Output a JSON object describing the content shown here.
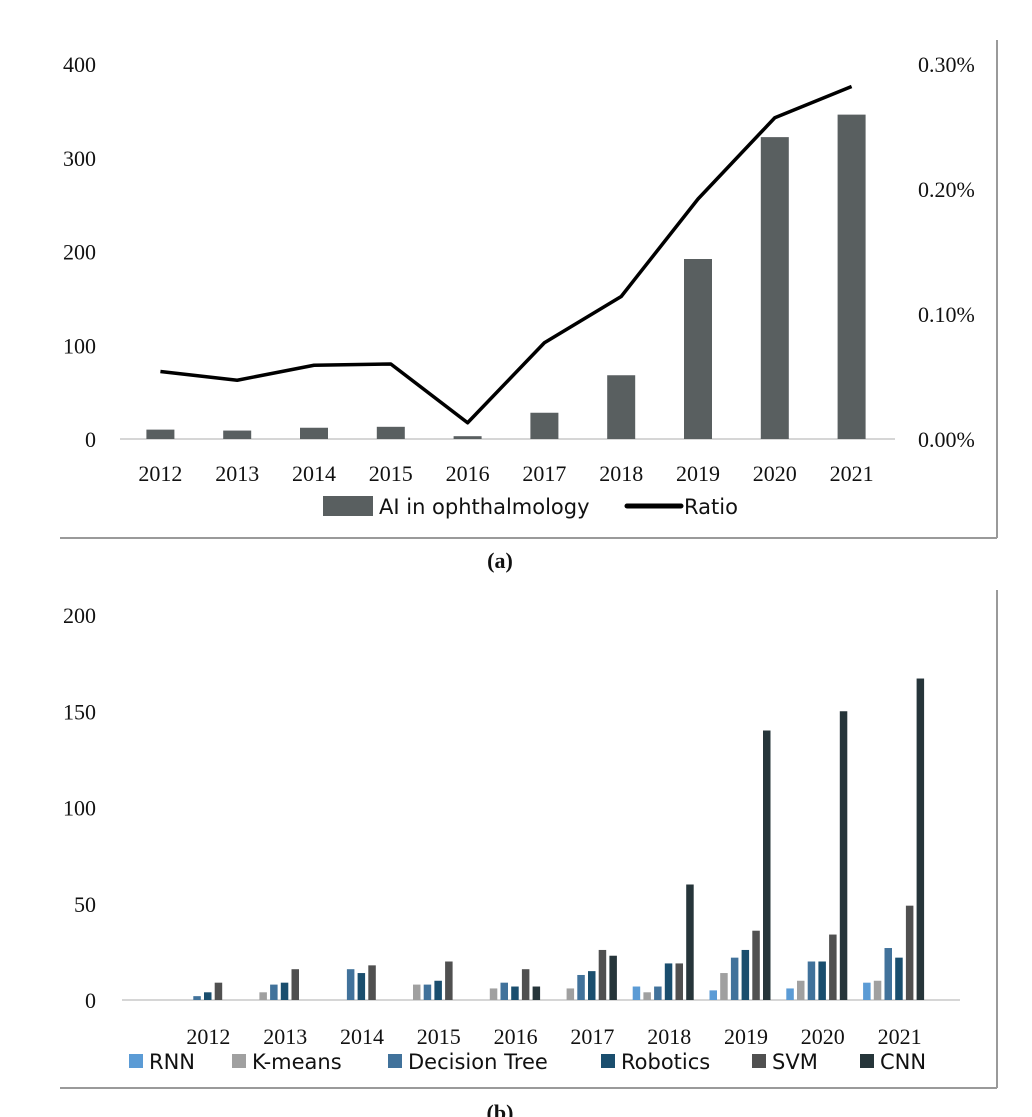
{
  "chart_data": [
    {
      "type": "bar",
      "caption": "(a)",
      "categories": [
        "2012",
        "2013",
        "2014",
        "2015",
        "2016",
        "2017",
        "2018",
        "2019",
        "2020",
        "2021"
      ],
      "series": [
        {
          "name": "AI in ophthalmology",
          "kind": "bar",
          "axis": "left",
          "color": "#595f60",
          "values": [
            10,
            9,
            12,
            13,
            3,
            28,
            68,
            192,
            322,
            346
          ]
        },
        {
          "name": "Ratio",
          "kind": "line",
          "axis": "right",
          "color": "#000000",
          "values": [
            0.00054,
            0.00047,
            0.00059,
            0.0006,
            0.00013,
            0.00077,
            0.00114,
            0.00192,
            0.00257,
            0.00282
          ]
        }
      ],
      "ylim": [
        0,
        400
      ],
      "yticks": [
        "0",
        "100",
        "200",
        "300",
        "400"
      ],
      "y2lim": [
        0,
        0.003
      ],
      "y2ticks": [
        "0.00%",
        "0.10%",
        "0.20%",
        "0.30%"
      ],
      "legend_position": "bottom"
    },
    {
      "type": "bar",
      "caption": "(b)",
      "categories": [
        "2012",
        "2013",
        "2014",
        "2015",
        "2016",
        "2017",
        "2018",
        "2019",
        "2020",
        "2021"
      ],
      "series": [
        {
          "name": "RNN",
          "color": "#5b9bd5",
          "values": [
            0,
            0,
            0,
            0,
            0,
            0,
            7,
            5,
            6,
            9
          ]
        },
        {
          "name": "K-means",
          "color": "#a0a0a0",
          "values": [
            0,
            4,
            0,
            8,
            6,
            6,
            4,
            14,
            10,
            10
          ]
        },
        {
          "name": "Decision Tree",
          "color": "#41729b",
          "values": [
            2,
            8,
            16,
            8,
            9,
            13,
            7,
            22,
            20,
            27
          ]
        },
        {
          "name": "Robotics",
          "color": "#1a4e6e",
          "values": [
            4,
            9,
            14,
            10,
            7,
            15,
            19,
            26,
            20,
            22
          ]
        },
        {
          "name": "SVM",
          "color": "#505050",
          "values": [
            9,
            16,
            18,
            20,
            16,
            26,
            19,
            36,
            34,
            49
          ]
        },
        {
          "name": "CNN",
          "color": "#26353a",
          "values": [
            0,
            0,
            0,
            0,
            7,
            23,
            60,
            140,
            150,
            167
          ]
        }
      ],
      "ylim": [
        0,
        200
      ],
      "yticks": [
        "0",
        "50",
        "100",
        "150",
        "200"
      ],
      "legend_position": "bottom"
    }
  ]
}
